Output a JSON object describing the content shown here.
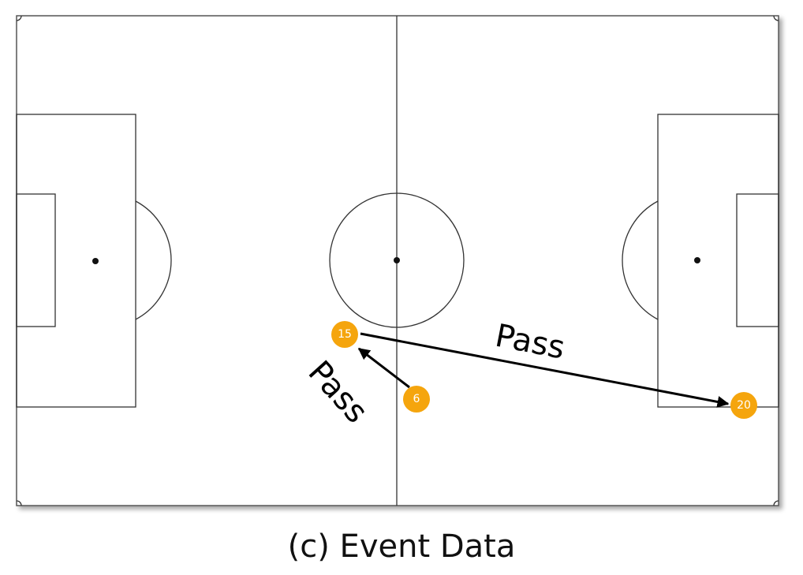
{
  "players": [
    {
      "id": "p15",
      "number": "15"
    },
    {
      "id": "p6",
      "number": "6"
    },
    {
      "id": "p20",
      "number": "20"
    }
  ],
  "events": [
    {
      "label": "Pass",
      "from": "p6",
      "to": "p15"
    },
    {
      "label": "Pass",
      "from": "p15",
      "to": "p20"
    }
  ],
  "caption": "(c) Event Data",
  "colors": {
    "player": "#f5a50d",
    "pitch_lines": "#333333",
    "arrow": "#000000"
  }
}
